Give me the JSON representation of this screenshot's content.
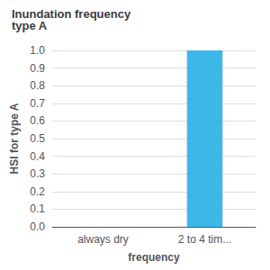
{
  "chart_data": {
    "type": "bar",
    "title": "Inundation frequency\ntype A",
    "xlabel": "frequency",
    "ylabel": "HSI for type A",
    "categories": [
      "always dry",
      "2 to 4 tim..."
    ],
    "values": [
      0.0,
      1.0
    ],
    "color": "#3cb8e8",
    "ylim": [
      0.0,
      1.0
    ],
    "yticks": [
      {
        "value": 0,
        "label": "0.0"
      },
      0.1,
      0.2,
      0.3,
      0.4,
      0.5,
      0.6,
      0.7,
      0.8,
      0.9,
      {
        "value": 1,
        "label": "1.0"
      }
    ],
    "grid": true
  }
}
